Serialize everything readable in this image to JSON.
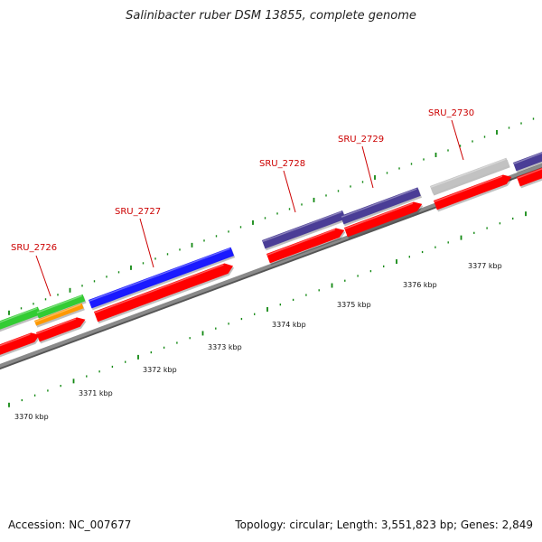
{
  "title": "Salinibacter ruber DSM 13855, complete genome",
  "footer": {
    "accession": "Accession: NC_007677",
    "stats": "Topology: circular; Length: 3,551,823 bp; Genes: 2,849"
  },
  "colors": {
    "cds": "#ff0000",
    "gene_blue": "#1a1aff",
    "gene_navy": "#4a3d96",
    "gene_grey": "#c2c2c2",
    "gene_green": "#33cc33",
    "gene_orange": "#ff9900",
    "backbone": "#8a8a8a",
    "ticks": "#118811",
    "labels": "#cc0000"
  },
  "scale_labels": [
    "3370 kbp",
    "3371 kbp",
    "3372 kbp",
    "3373 kbp",
    "3374 kbp",
    "3375 kbp",
    "3376 kbp",
    "3377 kbp"
  ],
  "gene_labels": [
    "SRU_2726",
    "SRU_2727",
    "SRU_2728",
    "SRU_2729",
    "SRU_2730"
  ]
}
